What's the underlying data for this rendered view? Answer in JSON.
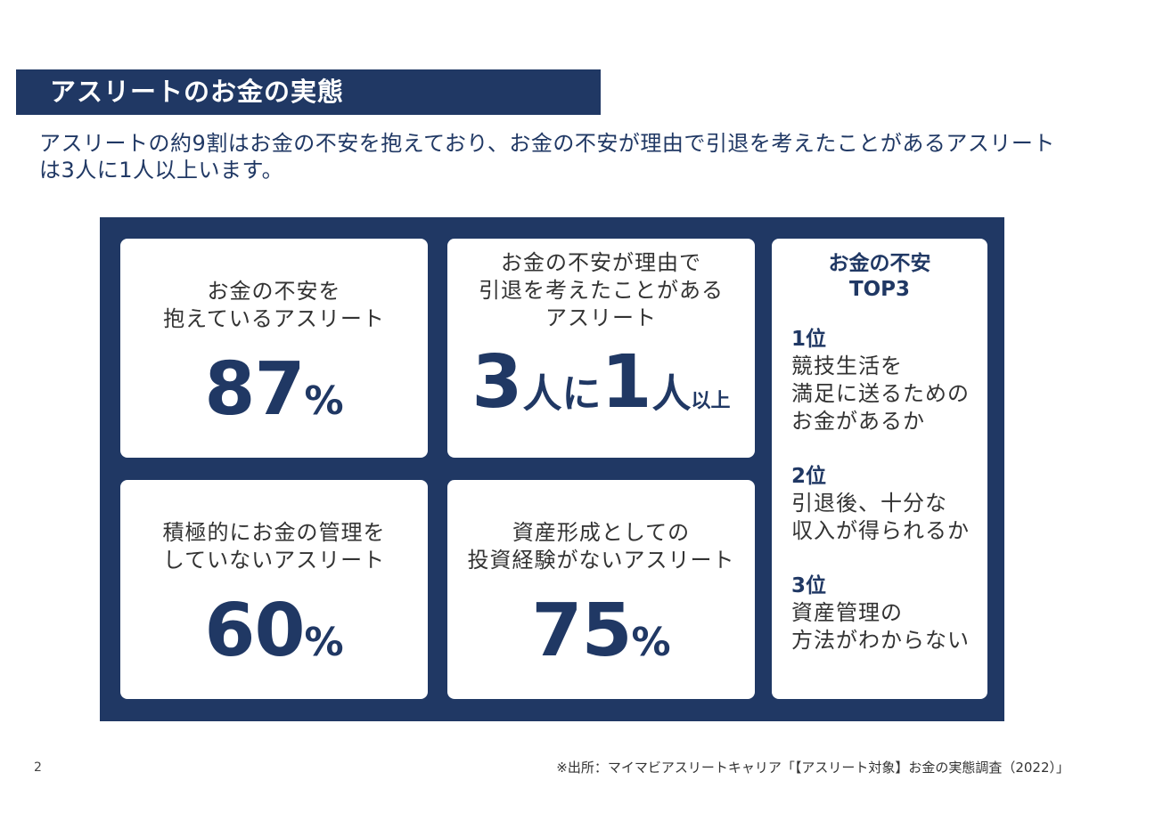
{
  "title": "アスリートのお金の実態",
  "subtitle": "アスリートの約9割はお金の不安を抱えており、お金の不安が理由で引退を考えたことがあるアスリートは3人に1人以上います。",
  "cards": {
    "anxiety": {
      "label_line1": "お金の不安を",
      "label_line2": "抱えているアスリート",
      "number": "87",
      "unit": "%"
    },
    "retirement": {
      "label_line1": "お金の不安が理由で",
      "label_line2": "引退を考えたことがある",
      "label_line3": "アスリート",
      "num_a": "3",
      "text_a": "人に",
      "num_b": "1",
      "text_b": "人",
      "text_c": "以上"
    },
    "management": {
      "label_line1": "積極的にお金の管理を",
      "label_line2": "していないアスリート",
      "number": "60",
      "unit": "%"
    },
    "investment": {
      "label_line1": "資産形成としての",
      "label_line2": "投資経験がないアスリート",
      "number": "75",
      "unit": "%"
    }
  },
  "top3": {
    "title_line1": "お金の不安",
    "title_line2": "TOP3",
    "items": [
      {
        "rank": "1位",
        "lines": [
          "競技生活を",
          "満足に送るための",
          "お金があるか"
        ]
      },
      {
        "rank": "2位",
        "lines": [
          "引退後、十分な",
          "収入が得られるか"
        ]
      },
      {
        "rank": "3位",
        "lines": [
          "資産管理の",
          "方法がわからない"
        ]
      }
    ]
  },
  "page_number": "2",
  "source": "※出所：マイマビアスリートキャリア「【アスリート対象】お金の実態調査（2022）」"
}
